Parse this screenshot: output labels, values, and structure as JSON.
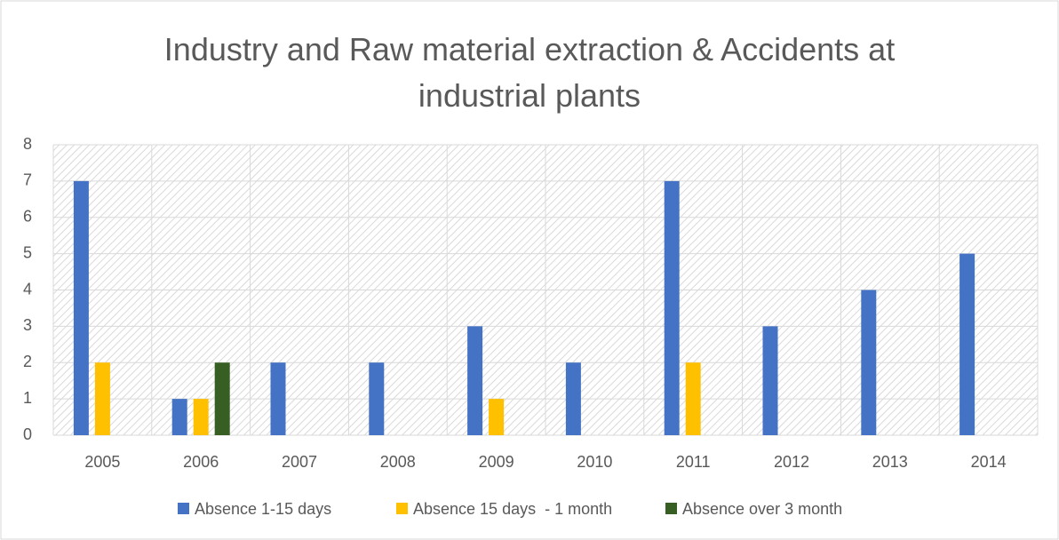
{
  "chart_data": {
    "type": "bar",
    "title": "Industry and Raw material extraction & Accidents at industrial plants",
    "categories": [
      "2005",
      "2006",
      "2007",
      "2008",
      "2009",
      "2010",
      "2011",
      "2012",
      "2013",
      "2014"
    ],
    "series": [
      {
        "name": "Absence 1-15 days",
        "color": "#4472c4",
        "values": [
          7,
          1,
          2,
          2,
          3,
          2,
          7,
          3,
          4,
          5
        ]
      },
      {
        "name": "Absence 15 days  - 1 month",
        "color": "#ffc000",
        "values": [
          2,
          1,
          0,
          0,
          1,
          0,
          2,
          0,
          0,
          0
        ]
      },
      {
        "name": "Absence over 3 month",
        "color": "#375f23",
        "values": [
          0,
          2,
          0,
          0,
          0,
          0,
          0,
          0,
          0,
          0
        ]
      }
    ],
    "ylim": [
      0,
      8
    ],
    "yticks": [
      0,
      1,
      2,
      3,
      4,
      5,
      6,
      7,
      8
    ],
    "grid": true,
    "legend": "bottom"
  }
}
